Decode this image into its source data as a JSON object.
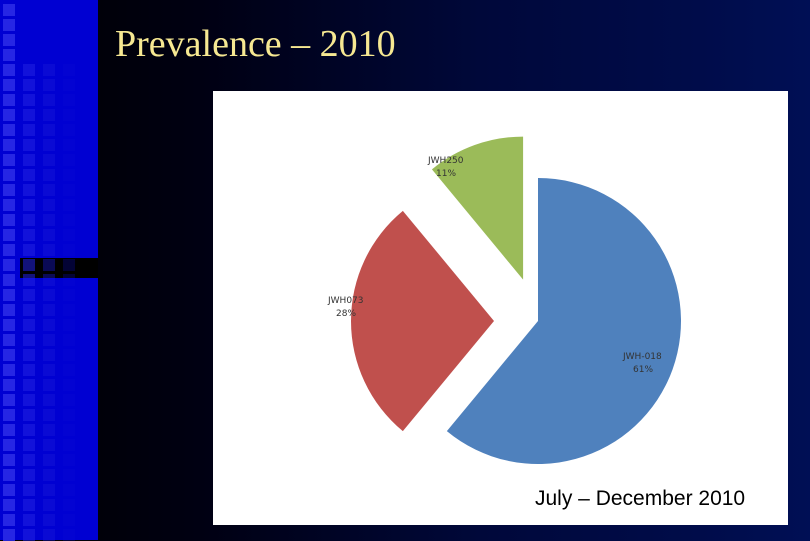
{
  "slide": {
    "title": "Prevalence – 2010",
    "caption": "July – December 2010"
  },
  "chart_data": {
    "type": "pie",
    "title": "",
    "exploded": true,
    "slices": [
      {
        "label": "JWH-018",
        "percent": 61,
        "pct_label": "61%",
        "color": "#4f81bd"
      },
      {
        "label": "JWH073",
        "percent": 28,
        "pct_label": "28%",
        "color": "#c0504d"
      },
      {
        "label": "JWH250",
        "percent": 11,
        "pct_label": "11%",
        "color": "#9bbb59"
      }
    ]
  },
  "colors": {
    "title_text": "#f6e892",
    "left_strip": "#0000d2",
    "chart_background": "#ffffff"
  }
}
